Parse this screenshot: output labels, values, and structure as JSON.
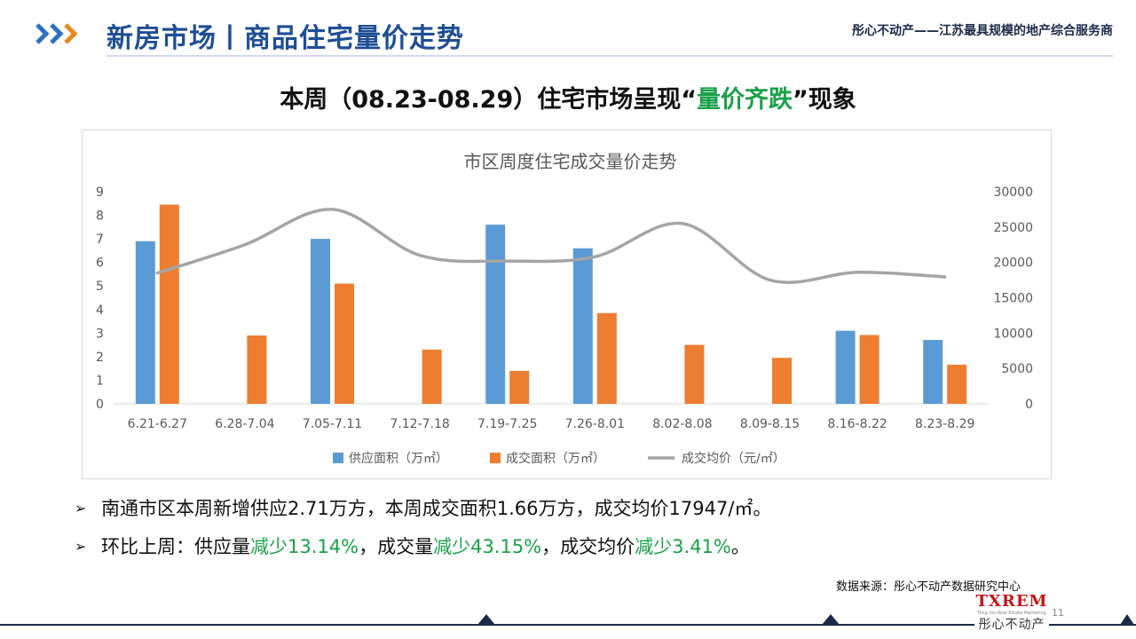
{
  "header": {
    "title": "新房市场丨商品住宅量价走势",
    "slogan": "彤心不动产——江苏最具规模的地产综合服务商"
  },
  "headline": {
    "prefix": "本周（08.23-08.29）住宅市场呈现“",
    "highlight": "量价齐跌",
    "suffix": "”现象"
  },
  "chart_data": {
    "type": "bar",
    "title": "市区周度住宅成交量价走势",
    "categories": [
      "6.21-6.27",
      "6.28-7.04",
      "7.05-7.11",
      "7.12-7.18",
      "7.19-7.25",
      "7.26-8.01",
      "8.02-8.08",
      "8.09-8.15",
      "8.16-8.22",
      "8.23-8.29"
    ],
    "y_left": {
      "min": 0,
      "max": 9,
      "ticks": [
        "0",
        "1",
        "2",
        "3",
        "4",
        "5",
        "6",
        "7",
        "8",
        "9"
      ]
    },
    "y_right": {
      "min": 0,
      "max": 30000,
      "ticks": [
        "0",
        "5000",
        "10000",
        "15000",
        "20000",
        "25000",
        "30000"
      ]
    },
    "series": [
      {
        "name": "供应面积（万㎡）",
        "kind": "bar",
        "axis": "left",
        "color": "#5b9bd5",
        "values": [
          6.9,
          0,
          7.0,
          0,
          7.6,
          6.6,
          0,
          0,
          3.1,
          2.71
        ]
      },
      {
        "name": "成交面积（万㎡）",
        "kind": "bar",
        "axis": "left",
        "color": "#ed7d31",
        "values": [
          8.45,
          2.9,
          5.1,
          2.3,
          1.4,
          3.85,
          2.5,
          1.95,
          2.92,
          1.66
        ]
      },
      {
        "name": "成交均价（元/㎡）",
        "kind": "line",
        "axis": "right",
        "color": "#a5a5a5",
        "values": [
          18500,
          22500,
          27500,
          21000,
          20200,
          20800,
          25500,
          17500,
          18600,
          17947
        ]
      }
    ],
    "legend": "bottom",
    "grid": false
  },
  "bullets": [
    {
      "mark": "➢",
      "parts": [
        {
          "text": "南通市区本周新增供应2.71万方，本周成交面积1.66万方，成交均价17947/㎡。",
          "highlight": false
        }
      ]
    },
    {
      "mark": "➢",
      "parts": [
        {
          "text": "环比上周：供应量",
          "highlight": false
        },
        {
          "text": "减少13.14%",
          "highlight": true
        },
        {
          "text": "，成交量",
          "highlight": false
        },
        {
          "text": "减少43.15%",
          "highlight": true
        },
        {
          "text": "，成交均价",
          "highlight": false
        },
        {
          "text": "减少3.41%",
          "highlight": true
        },
        {
          "text": "。",
          "highlight": false
        }
      ]
    }
  ],
  "source": "数据来源：彤心不动产数据研究中心",
  "footer": {
    "brand": "TXREM",
    "brand_sub": "Tong Xin Real Estate Marketing",
    "brand_cn": "彤心不动产",
    "page": "11"
  },
  "colors": {
    "accent": "#1f4e96",
    "arrow": "#e88a1a",
    "highlight": "#1aa04a",
    "footer_line": "#1b2a4a"
  }
}
